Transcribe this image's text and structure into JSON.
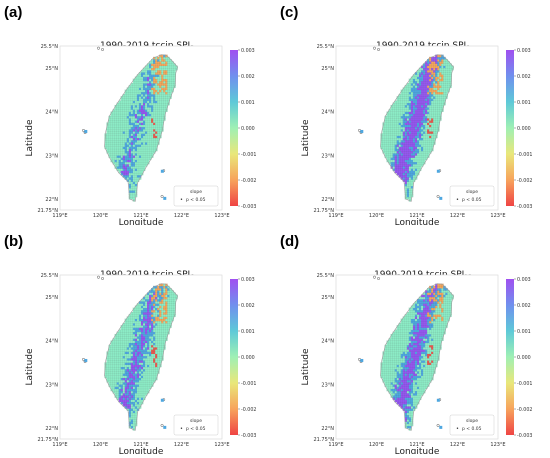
{
  "panels": [
    {
      "letter": "(a)",
      "title": "1990-2019 tccip SPI",
      "subscript": "3",
      "variant": 0
    },
    {
      "letter": "(c)",
      "title": "1990-2019 tccip SPI",
      "subscript": "9",
      "variant": 2
    },
    {
      "letter": "(b)",
      "title": "1990-2019 tccip SPI",
      "subscript": "6",
      "variant": 1
    },
    {
      "letter": "(d)",
      "title": "1990-2019 tccip SPI",
      "subscript": "12",
      "variant": 3
    }
  ],
  "axes": {
    "xlabel": "Longitude",
    "ylabel": "Latitude",
    "xticks": [
      "119°E",
      "120°E",
      "121°E",
      "122°E",
      "123°E"
    ],
    "yticks": [
      "21.75°N",
      "22°N",
      "23°N",
      "24°N",
      "25°N",
      "25.5°N"
    ],
    "xlim": [
      119,
      123
    ],
    "ylim": [
      21.75,
      25.5
    ]
  },
  "colorbar": {
    "ticks": [
      "0.003",
      "0.002",
      "0.001",
      "0.000",
      "-0.001",
      "-0.002",
      "-0.003"
    ],
    "range": [
      -0.003,
      0.003
    ],
    "colors": [
      "#ef4444",
      "#f7a35c",
      "#e9e77a",
      "#9ff0b4",
      "#5ec9d8",
      "#7090ee",
      "#a050f0"
    ]
  },
  "legend": {
    "title": "slope",
    "marker": "•",
    "label": "p < 0.05"
  },
  "map_colors": {
    "base": "#8cecc6",
    "blue": "#4ea7e0",
    "purple": "#9457ef",
    "orange": "#f3a65c",
    "red": "#e8574d",
    "outline": "#9a9a9a"
  }
}
